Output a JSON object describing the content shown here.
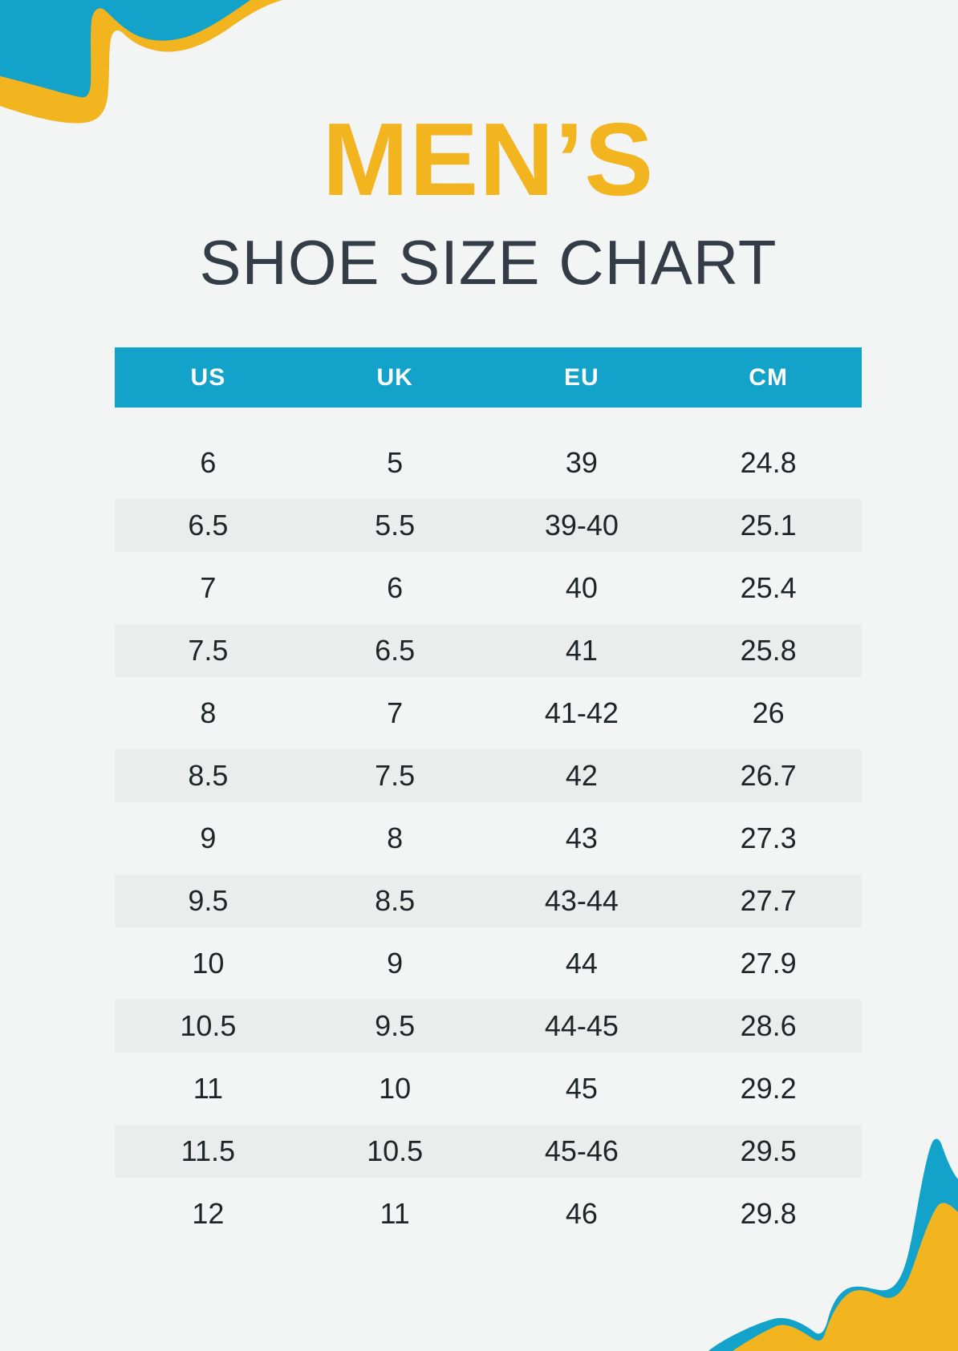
{
  "colors": {
    "background": "#F2F5F4",
    "blue": "#12A2CA",
    "yellow": "#F2B41F",
    "stripe": "#EBEDEC",
    "header_text": "#FFFFFF",
    "cell_text": "#1F2428",
    "subtitle_text": "#333C47"
  },
  "title": {
    "line1": "MEN’S",
    "line2": "SHOE SIZE CHART"
  },
  "decorations": {
    "top_left": "blue-and-yellow-wave",
    "bottom_right": "blue-and-yellow-wave"
  },
  "chart_data": {
    "type": "table",
    "title": "MEN’S SHOE SIZE CHART",
    "columns": [
      "US",
      "UK",
      "EU",
      "CM"
    ],
    "rows": [
      [
        "6",
        "5",
        "39",
        "24.8"
      ],
      [
        "6.5",
        "5.5",
        "39-40",
        "25.1"
      ],
      [
        "7",
        "6",
        "40",
        "25.4"
      ],
      [
        "7.5",
        "6.5",
        "41",
        "25.8"
      ],
      [
        "8",
        "7",
        "41-42",
        "26"
      ],
      [
        "8.5",
        "7.5",
        "42",
        "26.7"
      ],
      [
        "9",
        "8",
        "43",
        "27.3"
      ],
      [
        "9.5",
        "8.5",
        "43-44",
        "27.7"
      ],
      [
        "10",
        "9",
        "44",
        "27.9"
      ],
      [
        "10.5",
        "9.5",
        "44-45",
        "28.6"
      ],
      [
        "11",
        "10",
        "45",
        "29.2"
      ],
      [
        "11.5",
        "10.5",
        "45-46",
        "29.5"
      ],
      [
        "12",
        "11",
        "46",
        "29.8"
      ]
    ],
    "layout": {
      "header_background": "#12A2CA",
      "zebra_stripes": true,
      "stripe_background": "#EBEDEC",
      "grid": false
    }
  }
}
